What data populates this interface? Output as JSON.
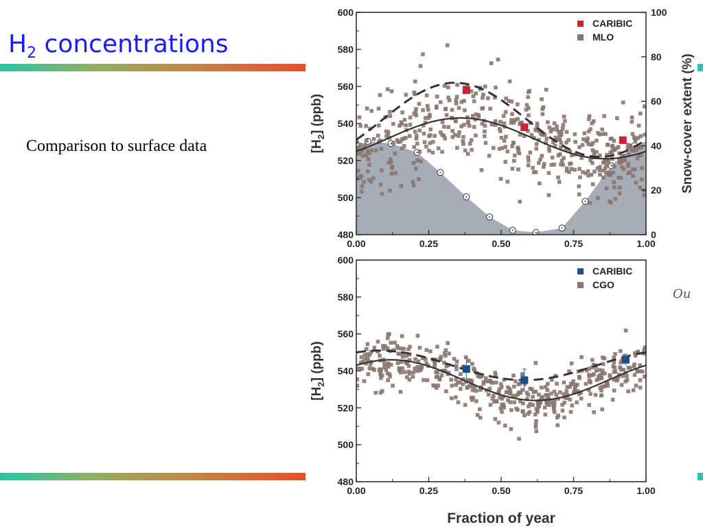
{
  "slide": {
    "title_main": "H",
    "title_sub": "2",
    "title_rest": " concentrations",
    "subtitle": "Comparison to surface data"
  },
  "colors": {
    "title": "#1a1aff",
    "caribic_top": "#cc2233",
    "caribic_bottom": "#1a4f8c",
    "station": "#8a7570",
    "snow_fill": "#a6adb6"
  },
  "chart_data": [
    {
      "type": "scatter",
      "ylabel_main": "[H",
      "ylabel_sub": "2",
      "ylabel_rest": "] (ppb)",
      "y2label": "Snow-cover extent (%)",
      "xlim": [
        0,
        1
      ],
      "ylim": [
        480,
        600
      ],
      "y2lim": [
        0,
        100
      ],
      "xticks": [
        "0.00",
        "0.25",
        "0.50",
        "0.75",
        "1.00"
      ],
      "yticks": [
        "480",
        "500",
        "520",
        "540",
        "560",
        "580",
        "600"
      ],
      "y2ticks": [
        "0",
        "20",
        "40",
        "60",
        "80",
        "100"
      ],
      "legend": [
        "CARIBIC",
        "MLO"
      ],
      "series": [
        {
          "name": "CARIBIC",
          "x": [
            0.38,
            0.58,
            0.92
          ],
          "y": [
            558,
            538,
            531
          ]
        },
        {
          "name": "MLO",
          "seasonal_fit": {
            "mean": 532,
            "amplitude": 11,
            "peak_phase": 0.36
          },
          "caribic_fit": {
            "mean": 542,
            "amplitude": 20,
            "peak_phase": 0.34
          },
          "n_points": 520,
          "spread": 12
        },
        {
          "name": "Snow-cover extent",
          "x": [
            0.04,
            0.12,
            0.21,
            0.29,
            0.38,
            0.46,
            0.54,
            0.62,
            0.71,
            0.79,
            0.88,
            0.96
          ],
          "y": [
            42,
            41,
            37,
            28,
            17,
            8,
            2,
            1,
            3,
            15,
            31,
            40
          ]
        }
      ]
    },
    {
      "type": "scatter",
      "ylabel_main": "[H",
      "ylabel_sub": "2",
      "ylabel_rest": "] (ppb)",
      "xlabel": "Fraction of year",
      "xlim": [
        0,
        1
      ],
      "ylim": [
        480,
        600
      ],
      "xticks": [
        "0.00",
        "0.25",
        "0.50",
        "0.75",
        "1.00"
      ],
      "yticks": [
        "480",
        "500",
        "520",
        "540",
        "560",
        "580",
        "600"
      ],
      "legend": [
        "CARIBIC",
        "CGO"
      ],
      "series": [
        {
          "name": "CARIBIC",
          "x": [
            0.38,
            0.58,
            0.93
          ],
          "y": [
            541,
            535,
            546
          ],
          "err": [
            6,
            6,
            3
          ]
        },
        {
          "name": "CGO",
          "seasonal_fit": {
            "mean": 535,
            "amplitude": 11,
            "peak_phase": 0.12
          },
          "caribic_fit": {
            "mean": 543,
            "amplitude": 8,
            "peak_phase": 0.08
          },
          "n_points": 480,
          "spread": 7
        }
      ]
    }
  ]
}
